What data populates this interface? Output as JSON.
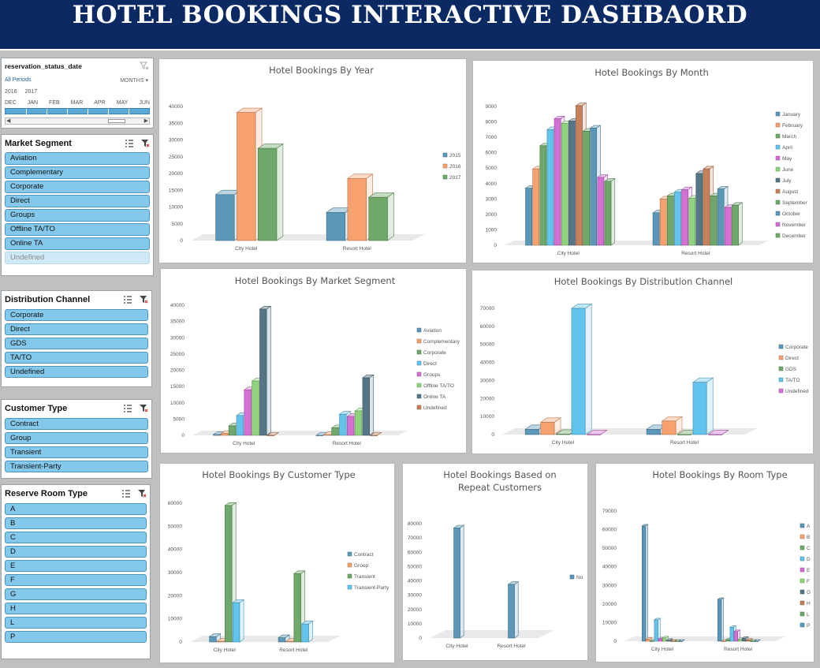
{
  "header": {
    "title": "HOTEL BOOKINGS INTERACTIVE DASHBAORD"
  },
  "timeline": {
    "title": "reservation_status_date",
    "periods_label": "All Periods",
    "level_label": "MONTHS",
    "years": [
      "2016",
      "2017"
    ],
    "months": [
      "DEC",
      "JAN",
      "FEB",
      "MAR",
      "APR",
      "MAY",
      "JUN"
    ]
  },
  "slicers": {
    "market_segment": {
      "title": "Market Segment",
      "items": [
        "Aviation",
        "Complementary",
        "Corporate",
        "Direct",
        "Groups",
        "Offline TA/TO",
        "Online TA",
        "Undefined"
      ],
      "disabled": [
        "Undefined"
      ]
    },
    "distribution_channel": {
      "title": "Distribution Channel",
      "items": [
        "Corporate",
        "Direct",
        "GDS",
        "TA/TO",
        "Undefined"
      ]
    },
    "customer_type": {
      "title": "Customer Type",
      "items": [
        "Contract",
        "Group",
        "Transient",
        "Transient-Party"
      ]
    },
    "reserve_room_type": {
      "title": "Reserve Room Type",
      "items": [
        "A",
        "B",
        "C",
        "D",
        "E",
        "F",
        "G",
        "H",
        "L",
        "P"
      ]
    }
  },
  "colors": {
    "header_bg": "#0b2a63",
    "slicer_item": "#84c9ec",
    "blue": "#5b98b8",
    "orange": "#f7a26e",
    "green": "#6ea86a",
    "sky": "#62c3ec",
    "pink": "#d46fd3",
    "lightgreen": "#8fd47c",
    "slate": "#557686",
    "brown": "#c7815a"
  },
  "charts": [
    {
      "id": "by-year",
      "title": "Hotel Bookings By Year",
      "chart_data": {
        "type": "bar",
        "title": "Hotel Bookings By Year",
        "categories": [
          "City Hotel",
          "Resort Hotel"
        ],
        "series": [
          {
            "name": "2015",
            "values": [
              13700,
              8400
            ]
          },
          {
            "name": "2016",
            "values": [
              38200,
              18500
            ]
          },
          {
            "name": "2017",
            "values": [
              27500,
              12900
            ]
          }
        ],
        "ylim": [
          0,
          40000
        ],
        "yticks": [
          0,
          5000,
          10000,
          15000,
          20000,
          25000,
          30000,
          35000,
          40000
        ],
        "legend": "right"
      }
    },
    {
      "id": "by-month",
      "title": "Hotel Bookings By Month",
      "chart_data": {
        "type": "bar",
        "title": "Hotel Bookings By Month",
        "categories": [
          "City Hotel",
          "Resort Hotel"
        ],
        "series": [
          {
            "name": "January",
            "values": [
              3700,
              2100
            ]
          },
          {
            "name": "February",
            "values": [
              4950,
              3000
            ]
          },
          {
            "name": "March",
            "values": [
              6450,
              3200
            ]
          },
          {
            "name": "April",
            "values": [
              7500,
              3450
            ]
          },
          {
            "name": "May",
            "values": [
              8200,
              3600
            ]
          },
          {
            "name": "June",
            "values": [
              7900,
              3050
            ]
          },
          {
            "name": "July",
            "values": [
              8050,
              4650
            ]
          },
          {
            "name": "August",
            "values": [
              9050,
              4950
            ]
          },
          {
            "name": "September",
            "values": [
              7400,
              3200
            ]
          },
          {
            "name": "October",
            "values": [
              7600,
              3650
            ]
          },
          {
            "name": "November",
            "values": [
              4400,
              2450
            ]
          },
          {
            "name": "December",
            "values": [
              4150,
              2600
            ]
          }
        ],
        "ylim": [
          0,
          9000
        ],
        "yticks": [
          0,
          1000,
          2000,
          3000,
          4000,
          5000,
          6000,
          7000,
          8000,
          9000
        ],
        "legend": "right"
      }
    },
    {
      "id": "by-market-segment",
      "title": "Hotel Bookings By Market Segment",
      "chart_data": {
        "type": "bar",
        "title": "Hotel Bookings By Market Segment",
        "categories": [
          "City Hotel",
          "Resort Hotel"
        ],
        "series": [
          {
            "name": "Aviation",
            "values": [
              230,
              0
            ]
          },
          {
            "name": "Complementary",
            "values": [
              550,
              200
            ]
          },
          {
            "name": "Corporate",
            "values": [
              2900,
              2300
            ]
          },
          {
            "name": "Direct",
            "values": [
              6100,
              6500
            ]
          },
          {
            "name": "Groups",
            "values": [
              14000,
              5800
            ]
          },
          {
            "name": "Offline TA/TO",
            "values": [
              16700,
              7500
            ]
          },
          {
            "name": "Online TA",
            "values": [
              38800,
              17700
            ]
          },
          {
            "name": "Undefined",
            "values": [
              0,
              0
            ]
          }
        ],
        "ylim": [
          0,
          40000
        ],
        "yticks": [
          0,
          5000,
          10000,
          15000,
          20000,
          25000,
          30000,
          35000,
          40000
        ],
        "legend": "right"
      }
    },
    {
      "id": "by-distribution-channel",
      "title": "Hotel Bookings By Distribution Channel",
      "chart_data": {
        "type": "bar",
        "title": "Hotel Bookings By Distribution Channel",
        "categories": [
          "City Hotel",
          "Resort Hotel"
        ],
        "series": [
          {
            "name": "Corporate",
            "values": [
              2900,
              2900
            ]
          },
          {
            "name": "Direct",
            "values": [
              6800,
              7500
            ]
          },
          {
            "name": "GDS",
            "values": [
              200,
              0
            ]
          },
          {
            "name": "TA/TO",
            "values": [
              70000,
              29000
            ]
          },
          {
            "name": "Undefined",
            "values": [
              0,
              0
            ]
          }
        ],
        "ylim": [
          0,
          70000
        ],
        "yticks": [
          0,
          10000,
          20000,
          30000,
          40000,
          50000,
          60000,
          70000
        ],
        "legend": "right"
      }
    },
    {
      "id": "by-customer-type",
      "title": "Hotel Bookings By Customer Type",
      "chart_data": {
        "type": "bar",
        "title": "Hotel Bookings By Customer Type",
        "categories": [
          "City Hotel",
          "Resort Hotel"
        ],
        "series": [
          {
            "name": "Contract",
            "values": [
              2300,
              1800
            ]
          },
          {
            "name": "Group",
            "values": [
              300,
              300
            ]
          },
          {
            "name": "Transient",
            "values": [
              59000,
              29500
            ]
          },
          {
            "name": "Transient-Party",
            "values": [
              17000,
              7800
            ]
          }
        ],
        "ylim": [
          0,
          60000
        ],
        "yticks": [
          0,
          10000,
          20000,
          30000,
          40000,
          50000,
          60000
        ],
        "legend": "right"
      }
    },
    {
      "id": "by-repeat-customers",
      "title": "Hotel Bookings Based on Repeat Customers",
      "title_lines": [
        "Hotel Bookings Based on",
        "Repeat Customers"
      ],
      "chart_data": {
        "type": "bar",
        "title": "Hotel Bookings Based on Repeat Customers",
        "categories": [
          "City Hotel",
          "Resort Hotel"
        ],
        "series": [
          {
            "name": "No",
            "values": [
              77000,
              37500
            ]
          }
        ],
        "ylim": [
          0,
          80000
        ],
        "yticks": [
          0,
          10000,
          20000,
          30000,
          40000,
          50000,
          60000,
          70000,
          80000
        ],
        "legend": "right"
      }
    },
    {
      "id": "by-room-type",
      "title": "Hotel Bookings By Room Type",
      "chart_data": {
        "type": "bar",
        "title": "Hotel Bookings By Room Type",
        "categories": [
          "City Hotel",
          "Resort Hotel"
        ],
        "series": [
          {
            "name": "A",
            "values": [
              62000,
              22500
            ]
          },
          {
            "name": "B",
            "values": [
              1100,
              0
            ]
          },
          {
            "name": "C",
            "values": [
              0,
              800
            ]
          },
          {
            "name": "D",
            "values": [
              11500,
              7500
            ]
          },
          {
            "name": "E",
            "values": [
              1300,
              5200
            ]
          },
          {
            "name": "F",
            "values": [
              1800,
              1000
            ]
          },
          {
            "name": "G",
            "values": [
              500,
              1600
            ]
          },
          {
            "name": "H",
            "values": [
              0,
              600
            ]
          },
          {
            "name": "L",
            "values": [
              0,
              0
            ]
          },
          {
            "name": "P",
            "values": [
              0,
              0
            ]
          }
        ],
        "ylim": [
          0,
          70000
        ],
        "yticks": [
          0,
          10000,
          20000,
          30000,
          40000,
          50000,
          60000,
          70000
        ],
        "legend": "right"
      }
    }
  ]
}
